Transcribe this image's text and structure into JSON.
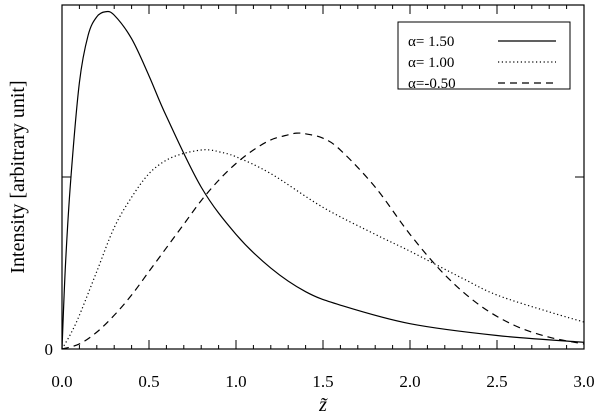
{
  "chart_data": {
    "type": "line",
    "title": "",
    "xlabel": "z̃",
    "ylabel": "Intensity [arbitrary unit]",
    "xlim": [
      0.0,
      3.0
    ],
    "ylim": [
      0,
      1.02
    ],
    "x_ticks": [
      "0.0",
      "0.5",
      "1.0",
      "1.5",
      "2.0",
      "2.5",
      "3.0"
    ],
    "y_ticks": [
      "0"
    ],
    "grid": false,
    "legend_position": "top-right",
    "series": [
      {
        "name": "α= 1.50",
        "style": "solid",
        "x": [
          0.0,
          0.02,
          0.05,
          0.1,
          0.15,
          0.2,
          0.25,
          0.3,
          0.4,
          0.5,
          0.6,
          0.8,
          1.0,
          1.2,
          1.4,
          1.6,
          2.0,
          2.5,
          3.0
        ],
        "y": [
          0.0,
          0.25,
          0.5,
          0.79,
          0.93,
          0.985,
          1.0,
          0.99,
          0.92,
          0.81,
          0.69,
          0.48,
          0.34,
          0.24,
          0.17,
          0.13,
          0.075,
          0.04,
          0.02
        ]
      },
      {
        "name": "α= 1.00",
        "style": "dotted",
        "x": [
          0.0,
          0.05,
          0.1,
          0.2,
          0.3,
          0.4,
          0.5,
          0.6,
          0.7,
          0.8,
          0.85,
          0.9,
          1.0,
          1.2,
          1.5,
          1.8,
          2.0,
          2.3,
          2.5,
          2.8,
          3.0
        ],
        "y": [
          0.0,
          0.045,
          0.1,
          0.23,
          0.36,
          0.45,
          0.52,
          0.56,
          0.58,
          0.59,
          0.59,
          0.585,
          0.57,
          0.52,
          0.42,
          0.34,
          0.29,
          0.21,
          0.16,
          0.11,
          0.08
        ]
      },
      {
        "name": "α=-0.50",
        "style": "dashed",
        "x": [
          0.0,
          0.1,
          0.2,
          0.3,
          0.4,
          0.5,
          0.6,
          0.7,
          0.8,
          0.9,
          1.0,
          1.1,
          1.2,
          1.3,
          1.35,
          1.4,
          1.5,
          1.6,
          1.8,
          2.0,
          2.2,
          2.4,
          2.6,
          2.8,
          3.0
        ],
        "y": [
          0.0,
          0.015,
          0.05,
          0.1,
          0.16,
          0.23,
          0.3,
          0.37,
          0.44,
          0.5,
          0.55,
          0.59,
          0.62,
          0.635,
          0.64,
          0.638,
          0.625,
          0.59,
          0.48,
          0.34,
          0.22,
          0.13,
          0.07,
          0.035,
          0.015
        ]
      }
    ]
  }
}
